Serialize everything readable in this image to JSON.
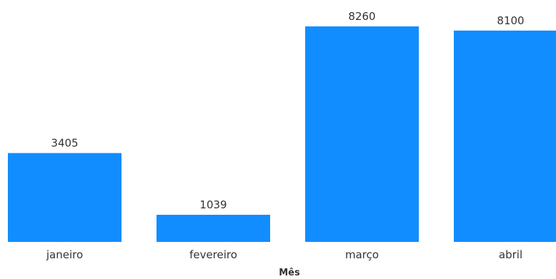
{
  "chart_data": {
    "type": "bar",
    "categories": [
      "janeiro",
      "fevereiro",
      "março",
      "abril"
    ],
    "values": [
      3405,
      1039,
      8260,
      8100
    ],
    "xlabel": "Mês",
    "ylabel": "",
    "ylim": [
      0,
      8260
    ],
    "grid": false,
    "show_y_axis": false,
    "data_labels": true,
    "bar_color": "#118DFF"
  }
}
